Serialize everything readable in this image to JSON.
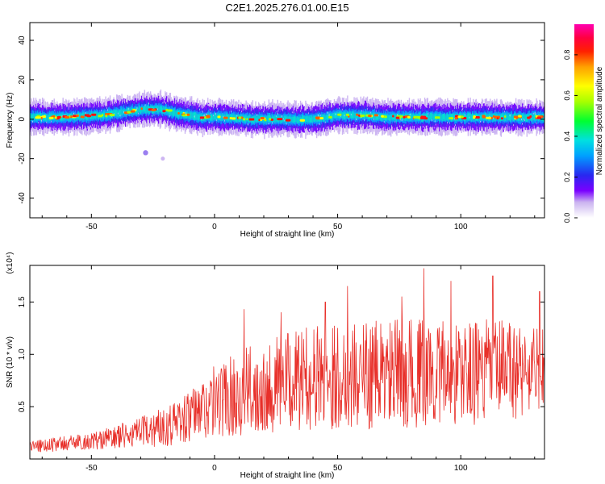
{
  "figure_title": "C2E1.2025.276.01.00.E15",
  "chart_data": [
    {
      "type": "heatmap",
      "title": "C2E1.2025.276.01.00.E15",
      "xlabel": "Height of straight line (km)",
      "ylabel": "Frequency (Hz)",
      "xlim": [
        -75,
        134
      ],
      "ylim": [
        -50,
        49
      ],
      "xticks": [
        -50,
        0,
        50,
        100
      ],
      "yticks": [
        -40,
        -20,
        0,
        20,
        40
      ],
      "colorbar": {
        "label": "Normalized spectral amplitude",
        "range": [
          0,
          0.95
        ],
        "ticks": [
          0.0,
          0.2,
          0.4,
          0.6,
          0.8
        ],
        "colormap": [
          "#ffffff",
          "#d8c8f4",
          "#6a00ff",
          "#2a2af0",
          "#00b4ff",
          "#00e6c8",
          "#00ff00",
          "#c8ff00",
          "#ffff00",
          "#ff8000",
          "#ff0000",
          "#ff00a0"
        ]
      },
      "band_center_hz": [
        [
          -75,
          1
        ],
        [
          -60,
          1
        ],
        [
          -45,
          2
        ],
        [
          -35,
          4
        ],
        [
          -28,
          5
        ],
        [
          -22,
          5
        ],
        [
          -15,
          3
        ],
        [
          -5,
          1
        ],
        [
          5,
          1
        ],
        [
          15,
          0
        ],
        [
          25,
          0
        ],
        [
          40,
          0
        ],
        [
          50,
          2
        ],
        [
          60,
          2
        ],
        [
          70,
          1
        ],
        [
          80,
          1
        ],
        [
          90,
          1
        ],
        [
          100,
          1
        ],
        [
          110,
          1
        ],
        [
          120,
          1
        ],
        [
          134,
          1
        ]
      ],
      "band_halfwidth_hz": 3,
      "outlier_points": [
        [
          -28,
          -17
        ],
        [
          -21,
          -20
        ]
      ]
    },
    {
      "type": "line",
      "xlabel": "Height of straight line (km)",
      "ylabel": "SNR (10 * v/v)",
      "yscale_label": "(x10⁴)",
      "xlim": [
        -75,
        134
      ],
      "ylim": [
        0,
        1.85
      ],
      "xticks": [
        -50,
        0,
        50,
        100
      ],
      "yticks": [
        0.5,
        1.0,
        1.5
      ],
      "color": "#e8302a",
      "envelope": {
        "x": [
          -75,
          -50,
          -30,
          -10,
          0,
          20,
          40,
          60,
          80,
          100,
          120,
          134
        ],
        "mean": [
          0.12,
          0.17,
          0.25,
          0.4,
          0.55,
          0.7,
          0.78,
          0.8,
          0.82,
          0.82,
          0.85,
          0.85
        ],
        "amplitude": [
          0.06,
          0.08,
          0.15,
          0.25,
          0.35,
          0.45,
          0.5,
          0.52,
          0.52,
          0.5,
          0.5,
          0.4
        ]
      },
      "peaks": [
        [
          -29,
          0.4
        ],
        [
          12,
          1.43
        ],
        [
          27,
          1.4
        ],
        [
          45,
          1.5
        ],
        [
          54,
          1.65
        ],
        [
          76,
          1.55
        ],
        [
          85,
          1.82
        ],
        [
          96,
          1.7
        ],
        [
          113,
          1.75
        ],
        [
          132,
          1.6
        ]
      ]
    }
  ]
}
